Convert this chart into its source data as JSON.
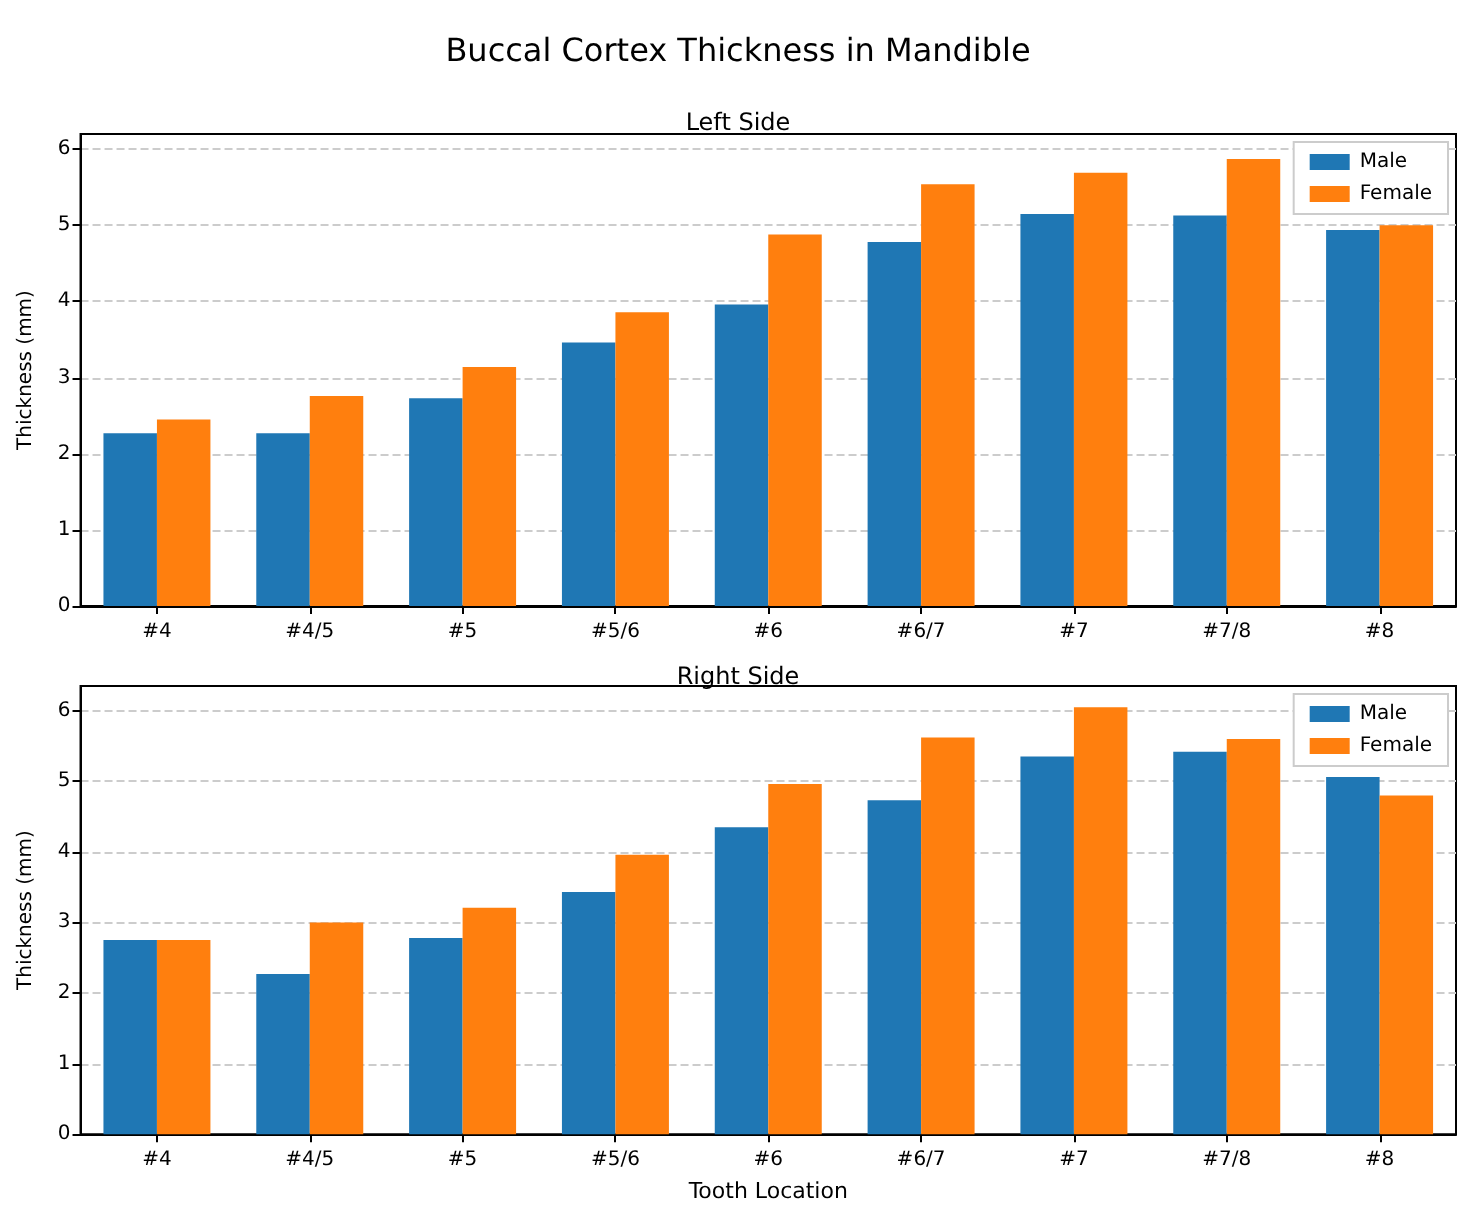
{
  "chart_data": [
    {
      "type": "bar",
      "title": "Buccal Cortex Thickness in Mandible",
      "subtitle": "Left Side",
      "ylabel": "Thickness (mm)",
      "categories": [
        "#4",
        "#4/5",
        "#5",
        "#5/6",
        "#6",
        "#6/7",
        "#7",
        "#7/8",
        "#8"
      ],
      "series": [
        {
          "name": "Male",
          "color": "#1f77b4",
          "values": [
            2.27,
            2.27,
            2.73,
            3.46,
            3.96,
            4.78,
            5.15,
            5.13,
            4.94
          ]
        },
        {
          "name": "Female",
          "color": "#ff7f0e",
          "values": [
            2.45,
            2.76,
            3.14,
            3.86,
            4.88,
            5.54,
            5.69,
            5.87,
            5.0
          ]
        }
      ],
      "ylim": [
        0,
        6.2
      ],
      "yticks": [
        0,
        1,
        2,
        3,
        4,
        5,
        6
      ],
      "grid": "y",
      "legend": "top right"
    },
    {
      "type": "bar",
      "title": "Right Side",
      "xlabel": "Tooth Location",
      "ylabel": "Thickness (mm)",
      "categories": [
        "#4",
        "#4/5",
        "#5",
        "#5/6",
        "#6",
        "#6/7",
        "#7",
        "#7/8",
        "#8"
      ],
      "series": [
        {
          "name": "Male",
          "color": "#1f77b4",
          "values": [
            2.75,
            2.27,
            2.78,
            3.43,
            4.35,
            4.73,
            5.35,
            5.42,
            5.06
          ]
        },
        {
          "name": "Female",
          "color": "#ff7f0e",
          "values": [
            2.75,
            3.0,
            3.21,
            3.96,
            4.96,
            5.62,
            6.05,
            5.6,
            4.8
          ]
        }
      ],
      "ylim": [
        0,
        6.35
      ],
      "yticks": [
        0,
        1,
        2,
        3,
        4,
        5,
        6
      ],
      "grid": "y",
      "legend": "top right"
    }
  ]
}
